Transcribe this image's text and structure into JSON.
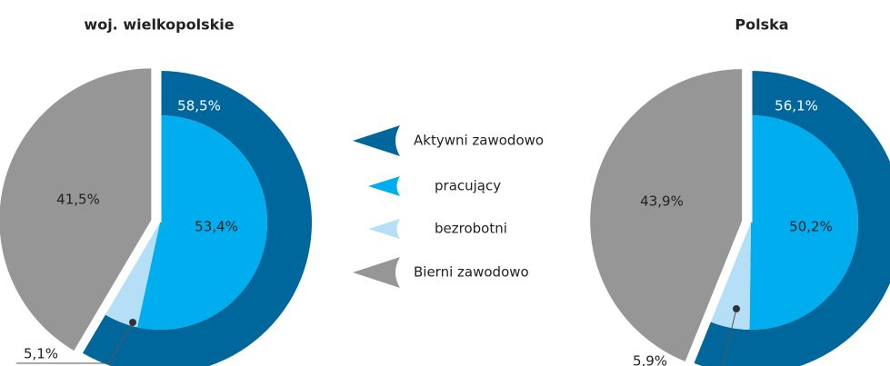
{
  "chart_data": [
    {
      "type": "pie",
      "title": "woj. wielkopolskie",
      "categories": [
        "Aktywni zawodowo",
        "pracujący",
        "bezrobotni",
        "Bierni zawodowo"
      ],
      "values": [
        58.5,
        53.4,
        5.1,
        41.5
      ],
      "value_labels": [
        "58,5%",
        "53,4%",
        "5,1%",
        "41,5%"
      ],
      "colors": [
        "#00679c",
        "#00aeef",
        "#b5dff6",
        "#979696"
      ]
    },
    {
      "type": "pie",
      "title": "Polska",
      "values": [
        56.1,
        50.2,
        5.9,
        43.9
      ],
      "value_labels": [
        "56,1%",
        "50,2%",
        "5,9%",
        "43,9%"
      ],
      "colors": [
        "#00679c",
        "#00aeef",
        "#b5dff6",
        "#979696"
      ]
    }
  ]
}
